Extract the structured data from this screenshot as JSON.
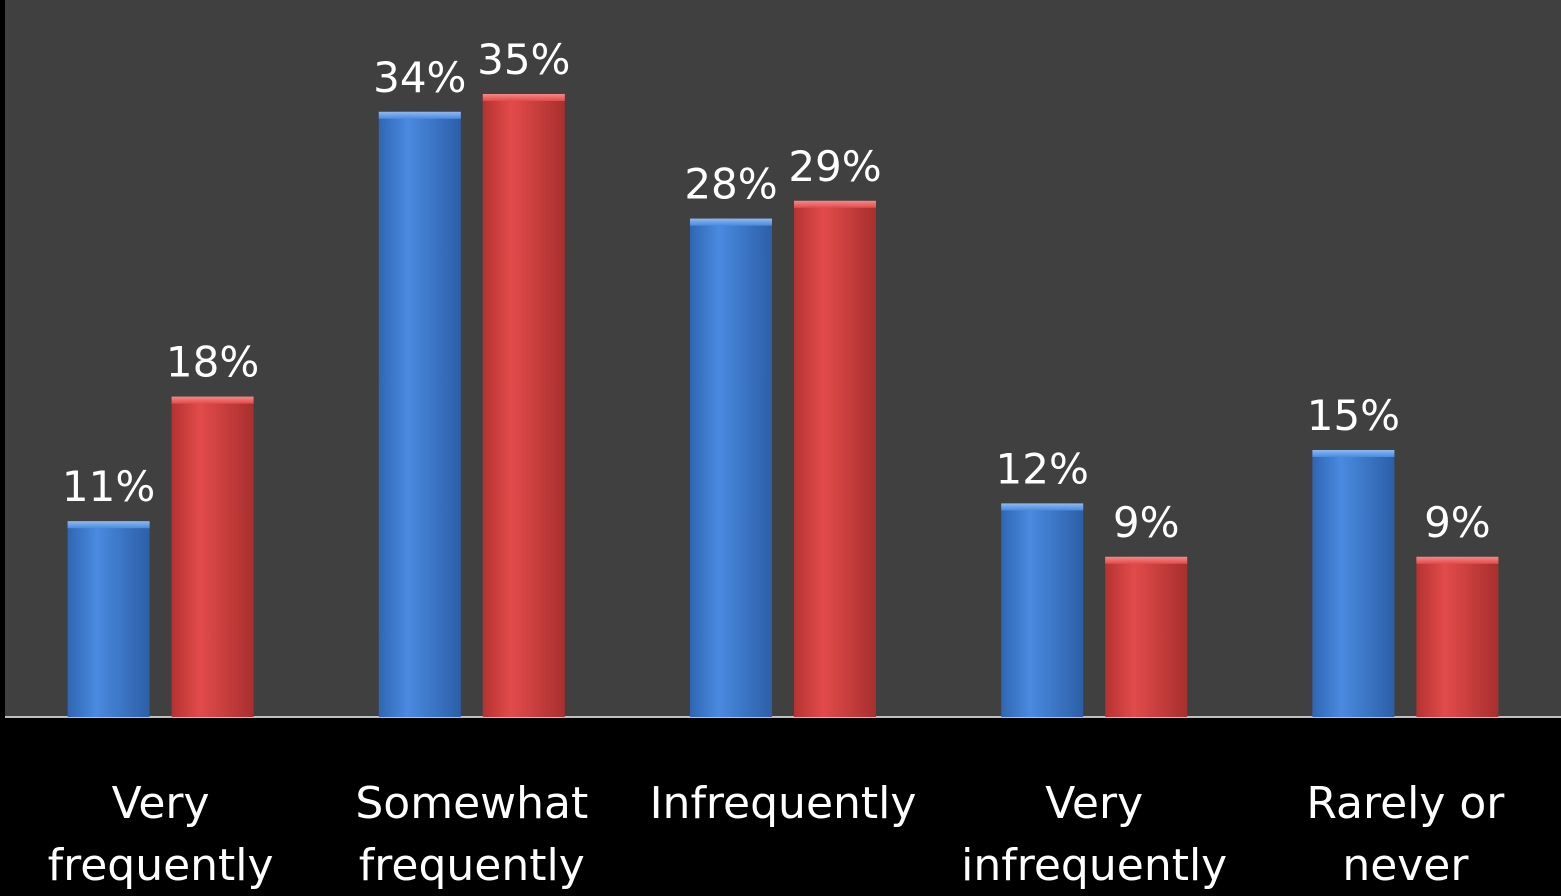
{
  "chart_data": {
    "type": "bar",
    "categories": [
      [
        "Very",
        "frequently"
      ],
      [
        "Somewhat",
        "frequently"
      ],
      [
        "Infrequently"
      ],
      [
        "Very",
        "infrequently"
      ],
      [
        "Rarely or",
        "never"
      ]
    ],
    "series": [
      {
        "color": "#3f80d6",
        "values": [
          11,
          34,
          28,
          12,
          15
        ],
        "labels": [
          "11%",
          "34%",
          "28%",
          "12%",
          "15%"
        ]
      },
      {
        "color": "#d94241",
        "values": [
          18,
          35,
          29,
          9,
          9
        ],
        "labels": [
          "18%",
          "35%",
          "29%",
          "9%",
          "9%"
        ]
      }
    ],
    "ylim": [
      0,
      40
    ],
    "grid": false,
    "legend": "none",
    "plot_background": "#404040",
    "page_background": "#000000"
  }
}
